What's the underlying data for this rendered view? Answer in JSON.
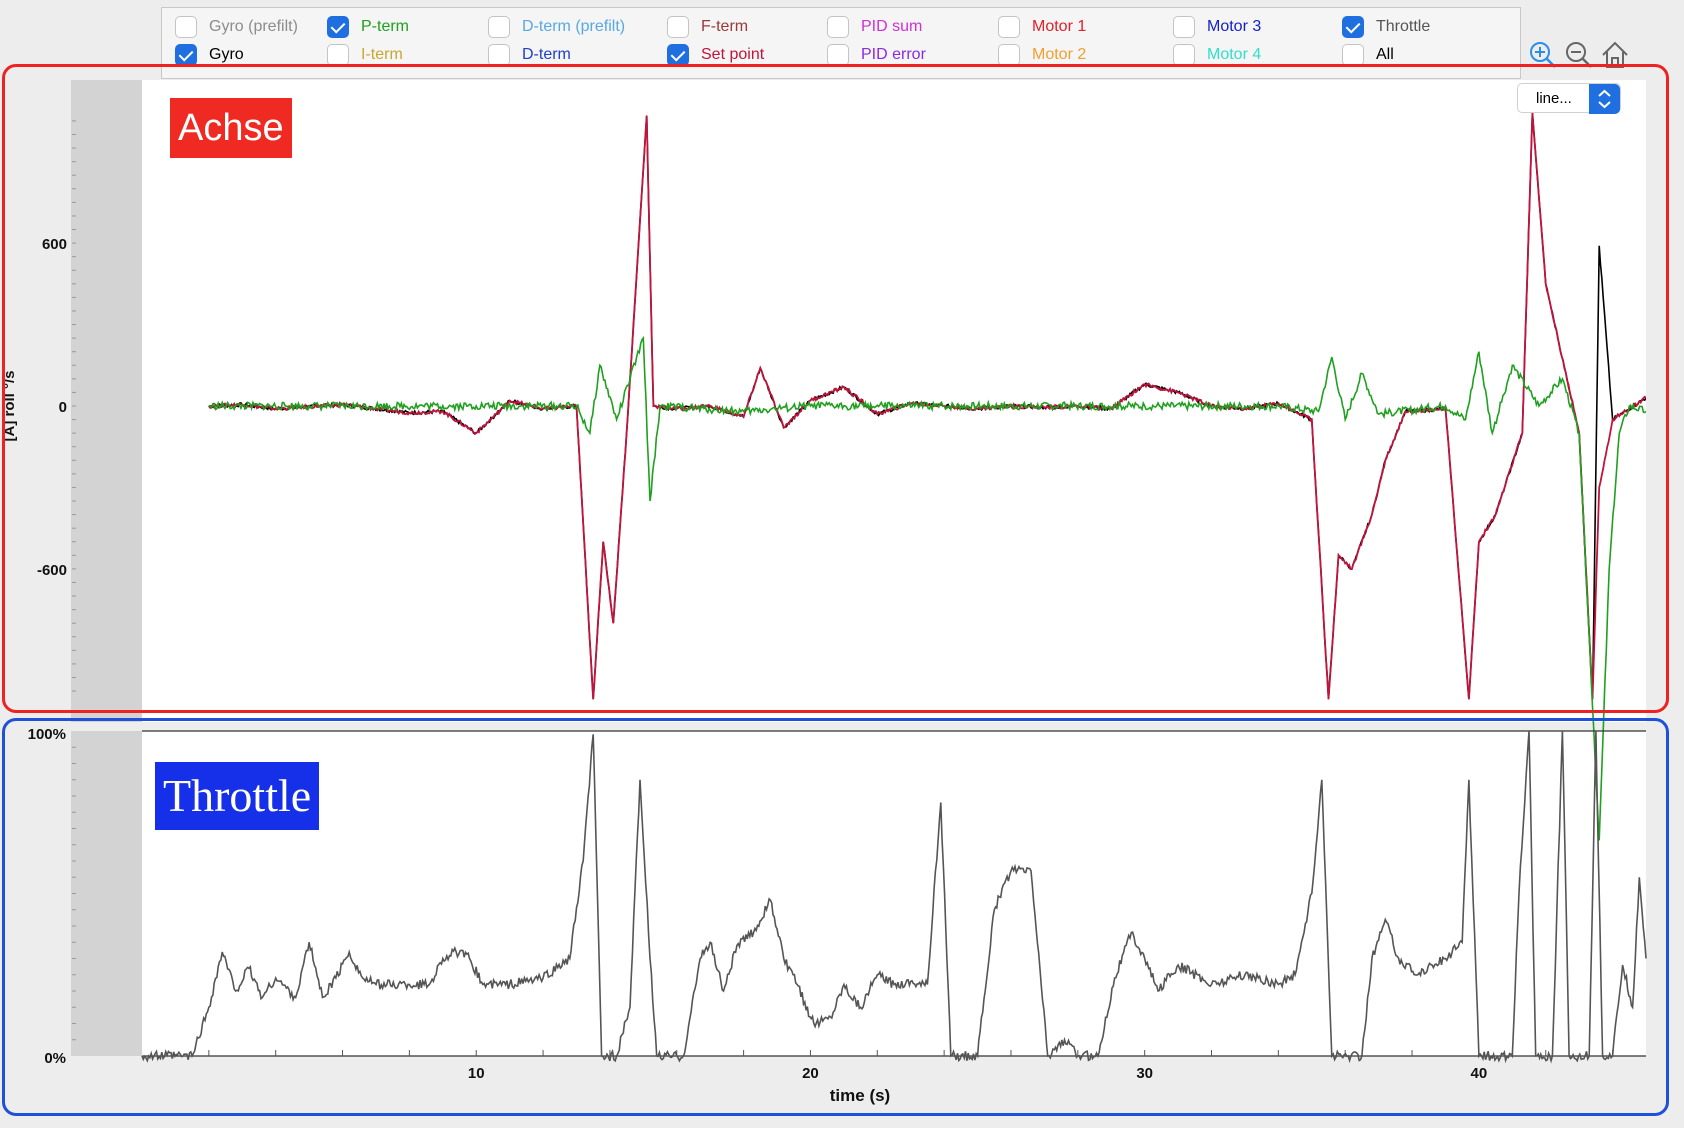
{
  "legend": {
    "items": [
      {
        "label": "Gyro (prefilt)",
        "checked": false,
        "color": "#8c8c8c"
      },
      {
        "label": "Gyro",
        "checked": true,
        "color": "#000000"
      },
      {
        "label": "P-term",
        "checked": true,
        "color": "#1fa01f"
      },
      {
        "label": "I-term",
        "checked": false,
        "color": "#c8a82e"
      },
      {
        "label": "D-term (prefilt)",
        "checked": false,
        "color": "#57a9e3"
      },
      {
        "label": "D-term",
        "checked": false,
        "color": "#1e3fc8"
      },
      {
        "label": "F-term",
        "checked": false,
        "color": "#9a3a3a"
      },
      {
        "label": "Set point",
        "checked": true,
        "color": "#c0143c"
      },
      {
        "label": "PID sum",
        "checked": false,
        "color": "#d12fd6"
      },
      {
        "label": "PID error",
        "checked": false,
        "color": "#8a2be2"
      },
      {
        "label": "Motor 1",
        "checked": false,
        "color": "#e0202a"
      },
      {
        "label": "Motor 2",
        "checked": false,
        "color": "#f0a030"
      },
      {
        "label": "Motor 3",
        "checked": false,
        "color": "#1420c8"
      },
      {
        "label": "Motor 4",
        "checked": false,
        "color": "#30e0c8"
      },
      {
        "label": "Throttle",
        "checked": true,
        "color": "#555555"
      },
      {
        "label": "All",
        "checked": false,
        "color": "#000000"
      }
    ]
  },
  "toolbar": {
    "icons": [
      "zoom-in-icon",
      "zoom-out-icon",
      "home-icon"
    ]
  },
  "dropdown": {
    "value": "line..."
  },
  "annotations": {
    "axis_box": "Achse",
    "throttle_box": "Throttle"
  },
  "chart_data": [
    {
      "type": "line",
      "ylabel": "[A] roll °/s",
      "ylim": [
        -1100,
        1100
      ],
      "yticks": [
        "600",
        "0",
        "-600"
      ],
      "xlim": [
        0,
        45
      ],
      "series": [
        {
          "name": "Gyro",
          "color": "#000000",
          "points": [
            [
              2,
              0
            ],
            [
              3,
              5
            ],
            [
              4,
              -10
            ],
            [
              6,
              5
            ],
            [
              8,
              -25
            ],
            [
              9,
              -20
            ],
            [
              10,
              -100
            ],
            [
              10.6,
              -30
            ],
            [
              11,
              20
            ],
            [
              12,
              -10
            ],
            [
              13,
              0
            ],
            [
              13.5,
              -1080
            ],
            [
              13.8,
              -500
            ],
            [
              14.1,
              -800
            ],
            [
              14.5,
              -100
            ],
            [
              15.1,
              1070
            ],
            [
              15.3,
              0
            ],
            [
              16,
              -10
            ],
            [
              17,
              0
            ],
            [
              18,
              -40
            ],
            [
              18.5,
              140
            ],
            [
              19.2,
              -80
            ],
            [
              20,
              20
            ],
            [
              21,
              70
            ],
            [
              22,
              -30
            ],
            [
              23,
              10
            ],
            [
              24,
              0
            ],
            [
              25,
              -10
            ],
            [
              26,
              0
            ],
            [
              27,
              -5
            ],
            [
              28,
              0
            ],
            [
              29,
              -10
            ],
            [
              30,
              80
            ],
            [
              31,
              50
            ],
            [
              32,
              0
            ],
            [
              33,
              -10
            ],
            [
              34,
              10
            ],
            [
              35,
              -50
            ],
            [
              35.5,
              -1080
            ],
            [
              35.8,
              -550
            ],
            [
              36.2,
              -600
            ],
            [
              36.8,
              -400
            ],
            [
              37.2,
              -200
            ],
            [
              37.8,
              -20
            ],
            [
              39,
              -10
            ],
            [
              39.7,
              -1080
            ],
            [
              40,
              -500
            ],
            [
              40.5,
              -400
            ],
            [
              41.3,
              -100
            ],
            [
              41.6,
              1080
            ],
            [
              42,
              450
            ],
            [
              43,
              -100
            ],
            [
              43.4,
              -1080
            ],
            [
              43.6,
              590
            ],
            [
              44,
              -50
            ],
            [
              45,
              30
            ]
          ]
        },
        {
          "name": "Set point",
          "color": "#c0143c",
          "points": [
            [
              2,
              0
            ],
            [
              3,
              5
            ],
            [
              4,
              -10
            ],
            [
              6,
              5
            ],
            [
              8,
              -25
            ],
            [
              9,
              -20
            ],
            [
              10,
              -100
            ],
            [
              10.6,
              -30
            ],
            [
              11,
              20
            ],
            [
              12,
              -10
            ],
            [
              13,
              0
            ],
            [
              13.5,
              -1080
            ],
            [
              13.8,
              -500
            ],
            [
              14.1,
              -800
            ],
            [
              14.5,
              -100
            ],
            [
              15.1,
              1070
            ],
            [
              15.3,
              0
            ],
            [
              16,
              -10
            ],
            [
              17,
              0
            ],
            [
              18,
              -40
            ],
            [
              18.5,
              140
            ],
            [
              19.2,
              -80
            ],
            [
              20,
              20
            ],
            [
              21,
              70
            ],
            [
              22,
              -30
            ],
            [
              23,
              10
            ],
            [
              24,
              0
            ],
            [
              25,
              -10
            ],
            [
              26,
              0
            ],
            [
              27,
              -5
            ],
            [
              28,
              0
            ],
            [
              29,
              -10
            ],
            [
              30,
              80
            ],
            [
              31,
              50
            ],
            [
              32,
              0
            ],
            [
              33,
              -10
            ],
            [
              34,
              10
            ],
            [
              35,
              -50
            ],
            [
              35.5,
              -1080
            ],
            [
              35.8,
              -550
            ],
            [
              36.2,
              -600
            ],
            [
              36.8,
              -400
            ],
            [
              37.2,
              -200
            ],
            [
              37.8,
              -20
            ],
            [
              39,
              -10
            ],
            [
              39.7,
              -1080
            ],
            [
              40,
              -500
            ],
            [
              40.5,
              -400
            ],
            [
              41.3,
              -100
            ],
            [
              41.6,
              1080
            ],
            [
              42,
              450
            ],
            [
              43,
              -100
            ],
            [
              43.4,
              -1080
            ],
            [
              43.6,
              -300
            ],
            [
              44,
              -50
            ],
            [
              45,
              30
            ]
          ]
        },
        {
          "name": "P-term",
          "color": "#1fa01f",
          "points": [
            [
              2,
              0
            ],
            [
              5,
              0
            ],
            [
              10,
              0
            ],
            [
              13,
              0
            ],
            [
              13.4,
              -100
            ],
            [
              13.7,
              150
            ],
            [
              14.2,
              -50
            ],
            [
              15,
              250
            ],
            [
              15.2,
              -350
            ],
            [
              15.5,
              0
            ],
            [
              18,
              -20
            ],
            [
              20,
              0
            ],
            [
              25,
              0
            ],
            [
              30,
              0
            ],
            [
              34,
              0
            ],
            [
              35.2,
              -20
            ],
            [
              35.6,
              180
            ],
            [
              36,
              -50
            ],
            [
              36.5,
              120
            ],
            [
              37,
              -30
            ],
            [
              39,
              0
            ],
            [
              39.6,
              -50
            ],
            [
              40,
              200
            ],
            [
              40.4,
              -100
            ],
            [
              41,
              150
            ],
            [
              41.8,
              0
            ],
            [
              42.5,
              100
            ],
            [
              43,
              -100
            ],
            [
              43.6,
              -1600
            ],
            [
              43.9,
              -600
            ],
            [
              44.2,
              -100
            ],
            [
              44.5,
              0
            ],
            [
              45,
              -20
            ]
          ]
        }
      ]
    },
    {
      "type": "line",
      "ylim": [
        0,
        100
      ],
      "yticks": [
        "100%",
        "0%"
      ],
      "xlabel": "time (s)",
      "xlim": [
        0,
        45
      ],
      "xticks": [
        10,
        20,
        30,
        40
      ],
      "series": [
        {
          "name": "Throttle",
          "color": "#555555",
          "points": [
            [
              0,
              0
            ],
            [
              1.5,
              0
            ],
            [
              2,
              15
            ],
            [
              2.4,
              32
            ],
            [
              2.8,
              20
            ],
            [
              3.2,
              27
            ],
            [
              3.6,
              18
            ],
            [
              4,
              24
            ],
            [
              4.6,
              18
            ],
            [
              5,
              35
            ],
            [
              5.4,
              18
            ],
            [
              5.8,
              24
            ],
            [
              6.2,
              32
            ],
            [
              6.6,
              24
            ],
            [
              7,
              22
            ],
            [
              8,
              22
            ],
            [
              8.6,
              22
            ],
            [
              9,
              30
            ],
            [
              9.4,
              32
            ],
            [
              9.8,
              30
            ],
            [
              10.2,
              22
            ],
            [
              11,
              22
            ],
            [
              12,
              24
            ],
            [
              12.8,
              30
            ],
            [
              13.2,
              60
            ],
            [
              13.5,
              99
            ],
            [
              13.75,
              0
            ],
            [
              14.2,
              0
            ],
            [
              14.6,
              15
            ],
            [
              14.9,
              85
            ],
            [
              15.2,
              30
            ],
            [
              15.4,
              0
            ],
            [
              16.2,
              0
            ],
            [
              16.7,
              30
            ],
            [
              17,
              35
            ],
            [
              17.4,
              20
            ],
            [
              17.8,
              34
            ],
            [
              18.3,
              38
            ],
            [
              18.8,
              48
            ],
            [
              19.2,
              30
            ],
            [
              19.6,
              22
            ],
            [
              20.1,
              10
            ],
            [
              20.6,
              12
            ],
            [
              21,
              22
            ],
            [
              21.5,
              15
            ],
            [
              22,
              25
            ],
            [
              22.5,
              22
            ],
            [
              23,
              23
            ],
            [
              23.5,
              22
            ],
            [
              23.9,
              78
            ],
            [
              24.2,
              0
            ],
            [
              25,
              0
            ],
            [
              25.5,
              45
            ],
            [
              26,
              57
            ],
            [
              26.6,
              57
            ],
            [
              27.1,
              0
            ],
            [
              27.6,
              5
            ],
            [
              28,
              0
            ],
            [
              28.6,
              0
            ],
            [
              29.1,
              24
            ],
            [
              29.6,
              38
            ],
            [
              30,
              30
            ],
            [
              30.4,
              20
            ],
            [
              31,
              28
            ],
            [
              32,
              22
            ],
            [
              33,
              25
            ],
            [
              34,
              22
            ],
            [
              34.5,
              25
            ],
            [
              35,
              50
            ],
            [
              35.3,
              85
            ],
            [
              35.6,
              0
            ],
            [
              36.5,
              0
            ],
            [
              36.8,
              30
            ],
            [
              37.2,
              42
            ],
            [
              37.6,
              30
            ],
            [
              38.1,
              25
            ],
            [
              38.6,
              28
            ],
            [
              39,
              30
            ],
            [
              39.5,
              35
            ],
            [
              39.7,
              85
            ],
            [
              40,
              0
            ],
            [
              41,
              0
            ],
            [
              41.2,
              50
            ],
            [
              41.5,
              100
            ],
            [
              41.7,
              0
            ],
            [
              42.2,
              0
            ],
            [
              42.5,
              100
            ],
            [
              42.7,
              0
            ],
            [
              43.3,
              0
            ],
            [
              43.5,
              100
            ],
            [
              43.7,
              0
            ],
            [
              44,
              0
            ],
            [
              44.3,
              28
            ],
            [
              44.6,
              15
            ],
            [
              44.8,
              55
            ],
            [
              45,
              30
            ]
          ]
        }
      ]
    }
  ]
}
